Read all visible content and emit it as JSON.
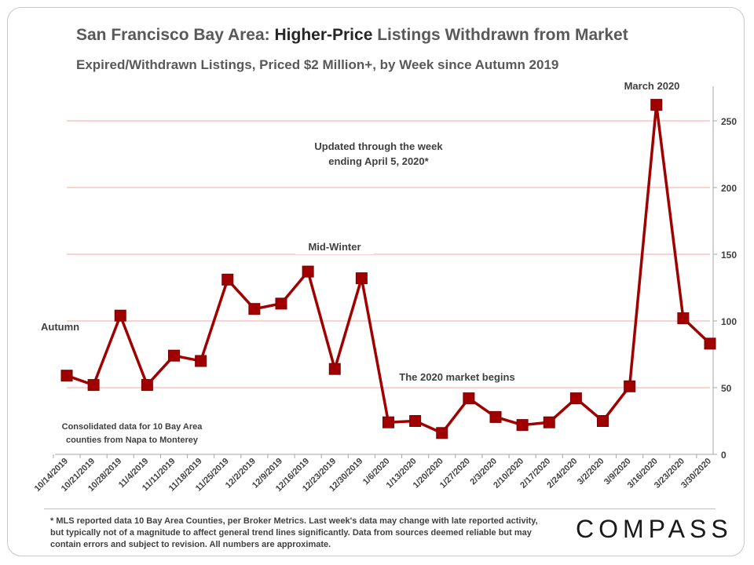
{
  "chart_data": {
    "type": "line",
    "title_parts": [
      "San Francisco Bay Area: ",
      "Higher-Price",
      " Listings Withdrawn from Market"
    ],
    "subtitle": "Expired/Withdrawn  Listings,  Priced $2 Million+,  by Week since Autumn 2019",
    "categories": [
      "10/14/2019",
      "10/21/2019",
      "10/28/2019",
      "11/4/2019",
      "11/11/2019",
      "11/18/2019",
      "11/25/2019",
      "12/2/2019",
      "12/9/2019",
      "12/16/2019",
      "12/23/2019",
      "12/30/2019",
      "1/6/2020",
      "1/13/2020",
      "1/20/2020",
      "1/27/2020",
      "2/3/2020",
      "2/10/2020",
      "2/17/2020",
      "2/24/2020",
      "3/2/2020",
      "3/9/2020",
      "3/16/2020",
      "3/23/2020",
      "3/30/2020"
    ],
    "values": [
      59,
      52,
      104,
      52,
      74,
      70,
      131,
      109,
      113,
      137,
      64,
      132,
      24,
      25,
      16,
      42,
      28,
      22,
      24,
      42,
      25,
      51,
      262,
      102,
      83
    ],
    "ylim": [
      0,
      275
    ],
    "yticks": [
      0,
      50,
      100,
      150,
      200,
      250
    ],
    "y_axis_side": "right",
    "grid": true,
    "series_color": "#a00000",
    "grid_color": "#f4a6a6",
    "annotations": [
      {
        "text": "Autumn"
      },
      {
        "text": "Mid-Winter"
      },
      {
        "text": "March 2020"
      },
      {
        "text": "Updated through the week"
      },
      {
        "text": "ending April 5, 2020*"
      },
      {
        "text": "The 2020 market begins"
      },
      {
        "text": "Consolidated  data for 10 Bay Area"
      },
      {
        "text": "counties from Napa to Monterey"
      }
    ]
  },
  "footnote": "* MLS reported data 10 Bay Area Counties, per Broker Metrics. Last week's data may change with late reported activity, but typically  not of a magnitude to affect general trend lines significantly.  Data from sources deemed reliable but may contain errors and subject to revision.  All numbers are approximate.",
  "logo_text": "COMPASS"
}
